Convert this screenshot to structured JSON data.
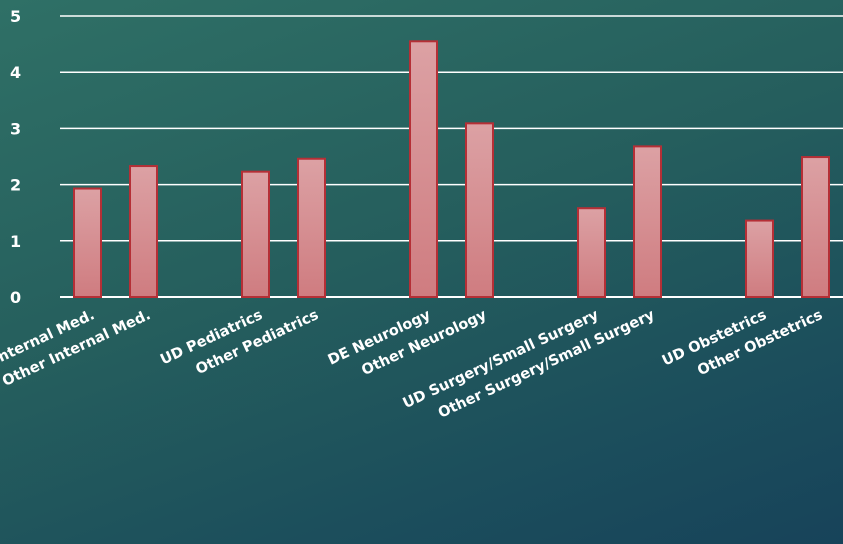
{
  "chart_data": {
    "type": "bar",
    "title": "",
    "xlabel": "",
    "ylabel": "",
    "ylim": [
      0,
      5
    ],
    "yticks": [
      0,
      1,
      2,
      3,
      4,
      5
    ],
    "grid": true,
    "categories": [
      "UD Internal Med.",
      "Other Internal Med.",
      "UD Pediatrics",
      "Other Pediatrics",
      "DE Neurology",
      "Other Neurology",
      "UD Surgery/Small Surgery",
      "Other Surgery/Small Surgery",
      "UD Obstetrics",
      "Other Obstetrics"
    ],
    "values": [
      1.93,
      2.33,
      2.23,
      2.46,
      4.55,
      3.09,
      1.58,
      2.68,
      1.36,
      2.49
    ],
    "colors": {
      "bar_fill": "#d98f93",
      "bar_stroke": "#b52f36",
      "grid": "#ffffff",
      "text": "#ffffff"
    }
  }
}
